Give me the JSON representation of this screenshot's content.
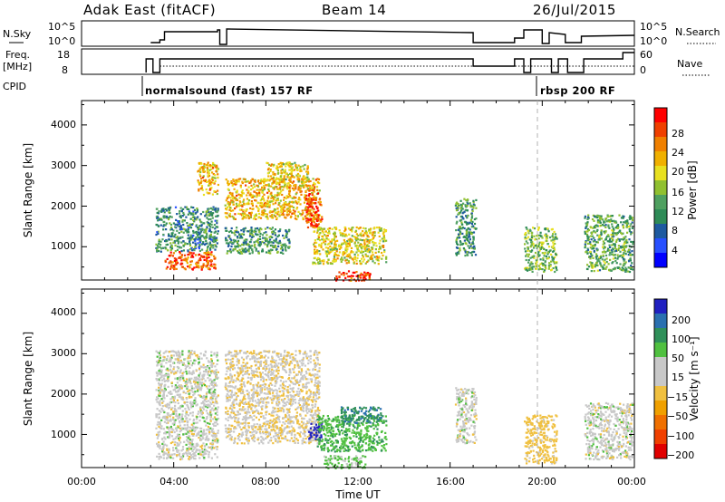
{
  "header": {
    "title_left": "Adak East (fitACF)",
    "title_center": "Beam 14",
    "title_right": "26/Jul/2015"
  },
  "panels": {
    "nsky": {
      "label": "N.Sky",
      "ticks": [
        "10^5",
        "10^0"
      ],
      "right_label": "N.Search",
      "right_ticks": [
        "10^5",
        "10^0"
      ]
    },
    "freq": {
      "label_line1": "Freq.",
      "label_line2": "[MHz]",
      "ticks": [
        "18",
        "8"
      ],
      "right_label": "Nave",
      "right_ticks": [
        "60",
        "0"
      ]
    },
    "cpid": {
      "label": "CPID",
      "modes": [
        {
          "text": "normalsound (fast) 157 RF",
          "start_h": 3.0
        },
        {
          "text": "rbsp 200 RF",
          "start_h": 20.0
        }
      ]
    }
  },
  "x_axis": {
    "label": "Time UT",
    "ticks": [
      "00:00",
      "04:00",
      "08:00",
      "12:00",
      "16:00",
      "20:00",
      "00:00"
    ],
    "range_h": [
      0,
      24
    ]
  },
  "power_panel": {
    "ylabel": "Slant Range [km]",
    "yticks": [
      "1000",
      "2000",
      "3000",
      "4000"
    ],
    "cbar_label": "Power [dB]",
    "cbar_ticks": [
      "4",
      "8",
      "12",
      "16",
      "20",
      "24",
      "28"
    ],
    "cbar_colors": [
      "#0000ff",
      "#2850ff",
      "#1e5aa0",
      "#2e8b57",
      "#4fa060",
      "#90c030",
      "#e8e020",
      "#f0b000",
      "#f08000",
      "#f04000",
      "#ff0000"
    ]
  },
  "velocity_panel": {
    "ylabel": "Slant Range [km]",
    "yticks": [
      "1000",
      "2000",
      "3000",
      "4000"
    ],
    "cbar_label": "Velocity [m s⁻¹]",
    "cbar_ticks": [
      "200",
      "100",
      "50",
      "15",
      "−15",
      "−50",
      "−100",
      "−200"
    ],
    "cbar_colors": [
      "#2020c0",
      "#2a70b0",
      "#30905a",
      "#50c040",
      "#c8c8c8",
      "#c8c8c8",
      "#f0c040",
      "#f0a000",
      "#f07000",
      "#f04000",
      "#e00000"
    ]
  },
  "chart_data": {
    "type": "heatmap",
    "x_unit": "hours UT",
    "y_unit": "km",
    "xlim": [
      0,
      24
    ],
    "ylim": [
      180,
      4600
    ],
    "power_blobs": [
      {
        "t0": 3.2,
        "t1": 5.9,
        "r0": 900,
        "r1": 2000,
        "v": 10
      },
      {
        "t0": 3.6,
        "t1": 5.8,
        "r0": 450,
        "r1": 900,
        "v": 25
      },
      {
        "t0": 5.0,
        "t1": 5.9,
        "r0": 2300,
        "r1": 3100,
        "v": 20
      },
      {
        "t0": 6.2,
        "t1": 10.3,
        "r0": 1700,
        "r1": 2700,
        "v": 20
      },
      {
        "t0": 8.0,
        "t1": 9.8,
        "r0": 2500,
        "r1": 3100,
        "v": 18
      },
      {
        "t0": 6.2,
        "t1": 9.0,
        "r0": 850,
        "r1": 1500,
        "v": 11
      },
      {
        "t0": 9.7,
        "t1": 10.4,
        "r0": 1500,
        "r1": 2400,
        "v": 26
      },
      {
        "t0": 10.0,
        "t1": 13.2,
        "r0": 600,
        "r1": 1500,
        "v": 18
      },
      {
        "t0": 11.0,
        "t1": 12.5,
        "r0": 180,
        "r1": 420,
        "v": 26
      },
      {
        "t0": 16.2,
        "t1": 17.1,
        "r0": 800,
        "r1": 2200,
        "v": 11
      },
      {
        "t0": 19.2,
        "t1": 20.6,
        "r0": 400,
        "r1": 1500,
        "v": 14
      },
      {
        "t0": 21.8,
        "t1": 23.9,
        "r0": 400,
        "r1": 1800,
        "v": 12
      }
    ],
    "velocity_blobs": [
      {
        "t0": 3.2,
        "t1": 5.9,
        "r0": 400,
        "r1": 3100,
        "v": 0
      },
      {
        "t0": 6.2,
        "t1": 10.3,
        "r0": 800,
        "r1": 3100,
        "v": -10
      },
      {
        "t0": 9.8,
        "t1": 10.4,
        "r0": 900,
        "r1": 1300,
        "v": 180
      },
      {
        "t0": 10.2,
        "t1": 13.2,
        "r0": 600,
        "r1": 1500,
        "v": 40
      },
      {
        "t0": 11.2,
        "t1": 13.0,
        "r0": 1300,
        "r1": 1700,
        "v": 70
      },
      {
        "t0": 10.5,
        "t1": 12.3,
        "r0": 180,
        "r1": 500,
        "v": 25
      },
      {
        "t0": 16.2,
        "t1": 17.1,
        "r0": 800,
        "r1": 2200,
        "v": 0
      },
      {
        "t0": 19.2,
        "t1": 20.6,
        "r0": 300,
        "r1": 1500,
        "v": -30
      },
      {
        "t0": 21.8,
        "t1": 23.9,
        "r0": 400,
        "r1": 1800,
        "v": 0
      }
    ]
  }
}
